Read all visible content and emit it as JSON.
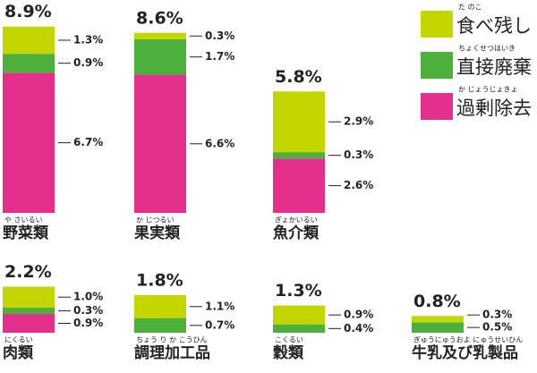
{
  "chart_data": {
    "type": "stacked-bar",
    "categories": [
      "野菜類",
      "果実類",
      "魚介類",
      "肉類",
      "調理加工品",
      "穀類",
      "牛乳及び乳製品"
    ],
    "readings": [
      "や さいるい",
      "か じつるい",
      "ぎょかいるい",
      "にくるい",
      "ちょう り か こうひん",
      "こくるい",
      "ぎゅうにゅうおよ にゅうせいひん"
    ],
    "totals": [
      8.9,
      8.6,
      5.8,
      2.2,
      1.8,
      1.3,
      0.8
    ],
    "total_labels": [
      "8.9%",
      "8.6%",
      "5.8%",
      "2.2%",
      "1.8%",
      "1.3%",
      "0.8%"
    ],
    "series": [
      {
        "name": "食べ残し",
        "reading": "た のこ",
        "color": "#c3d600",
        "values": [
          1.3,
          0.3,
          2.9,
          1.0,
          1.1,
          0.9,
          0.3
        ],
        "value_labels": [
          "1.3%",
          "0.3%",
          "2.9%",
          "1.0%",
          "1.1%",
          "0.9%",
          "0.3%"
        ]
      },
      {
        "name": "直接廃棄",
        "reading": "ちょくせつはいき",
        "color": "#4daf3c",
        "values": [
          0.9,
          1.7,
          0.3,
          0.3,
          0.7,
          0.4,
          0.5
        ],
        "value_labels": [
          "0.9%",
          "1.7%",
          "0.3%",
          "0.3%",
          "0.7%",
          "0.4%",
          "0.5%"
        ]
      },
      {
        "name": "過剰除去",
        "reading": "か じょうじょきょ",
        "color": "#e4308a",
        "values": [
          6.7,
          6.6,
          2.6,
          0.9,
          null,
          null,
          null
        ],
        "value_labels": [
          "6.7%",
          "6.6%",
          "2.6%",
          "0.9%",
          null,
          null,
          null
        ]
      }
    ]
  }
}
